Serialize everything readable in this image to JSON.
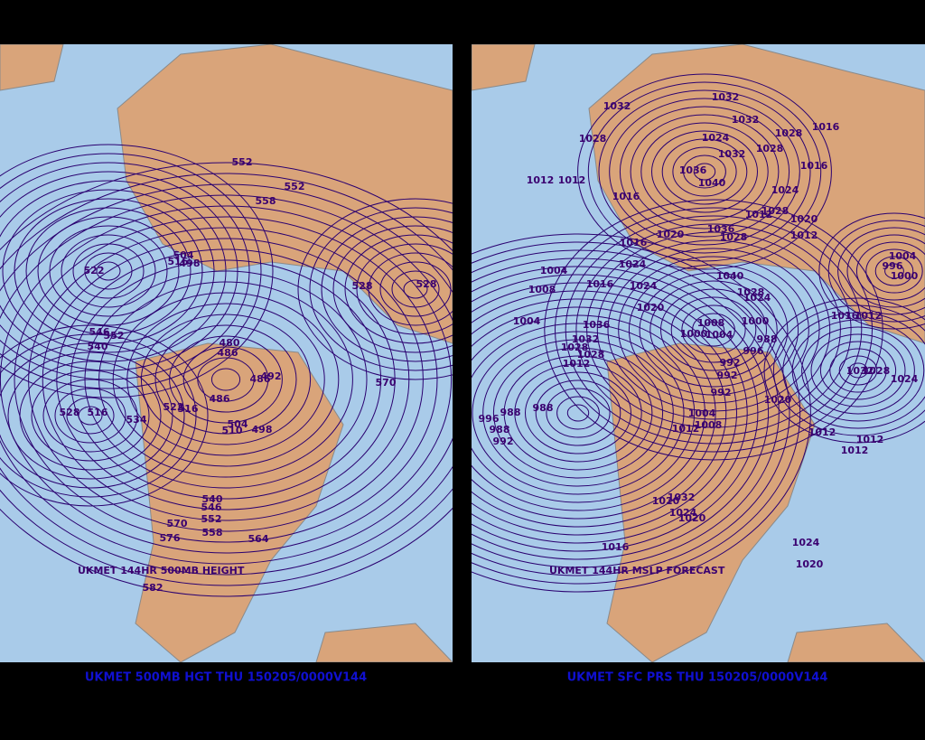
{
  "panels": [
    {
      "map_label": "UKMET 144HR 500MB HEIGHT",
      "caption": "UKMET 500MB HGT THU 150205/0000V144",
      "contour_labels": [
        552,
        552,
        558,
        504,
        516,
        498,
        522,
        528,
        528,
        546,
        552,
        540,
        480,
        486,
        492,
        486,
        486,
        570,
        528,
        516,
        534,
        522,
        516,
        504,
        510,
        498,
        540,
        546,
        552,
        558,
        570,
        576,
        564,
        582
      ]
    },
    {
      "map_label": "UKMET 144HR MSLP FORECAST",
      "caption": "UKMET SFC PRS THU 150205/0000V144",
      "contour_labels": [
        1032,
        1032,
        1032,
        1028,
        1024,
        1028,
        1028,
        1016,
        1032,
        1016,
        1036,
        1040,
        1012,
        1012,
        1016,
        1024,
        1028,
        1012,
        1020,
        1012,
        1016,
        1020,
        1036,
        1028,
        1004,
        1024,
        1004,
        996,
        1000,
        1008,
        1016,
        1024,
        1040,
        1028,
        1024,
        1020,
        1004,
        1036,
        1000,
        1008,
        1032,
        1000,
        1004,
        1016,
        1012,
        996,
        988,
        1028,
        1028,
        1012,
        992,
        992,
        1032,
        1028,
        1024,
        992,
        1020,
        988,
        996,
        988,
        988,
        992,
        1004,
        1008,
        1012,
        1012,
        1012,
        1012,
        1020,
        1032,
        1024,
        1020,
        1016,
        1024,
        1020
      ]
    }
  ]
}
